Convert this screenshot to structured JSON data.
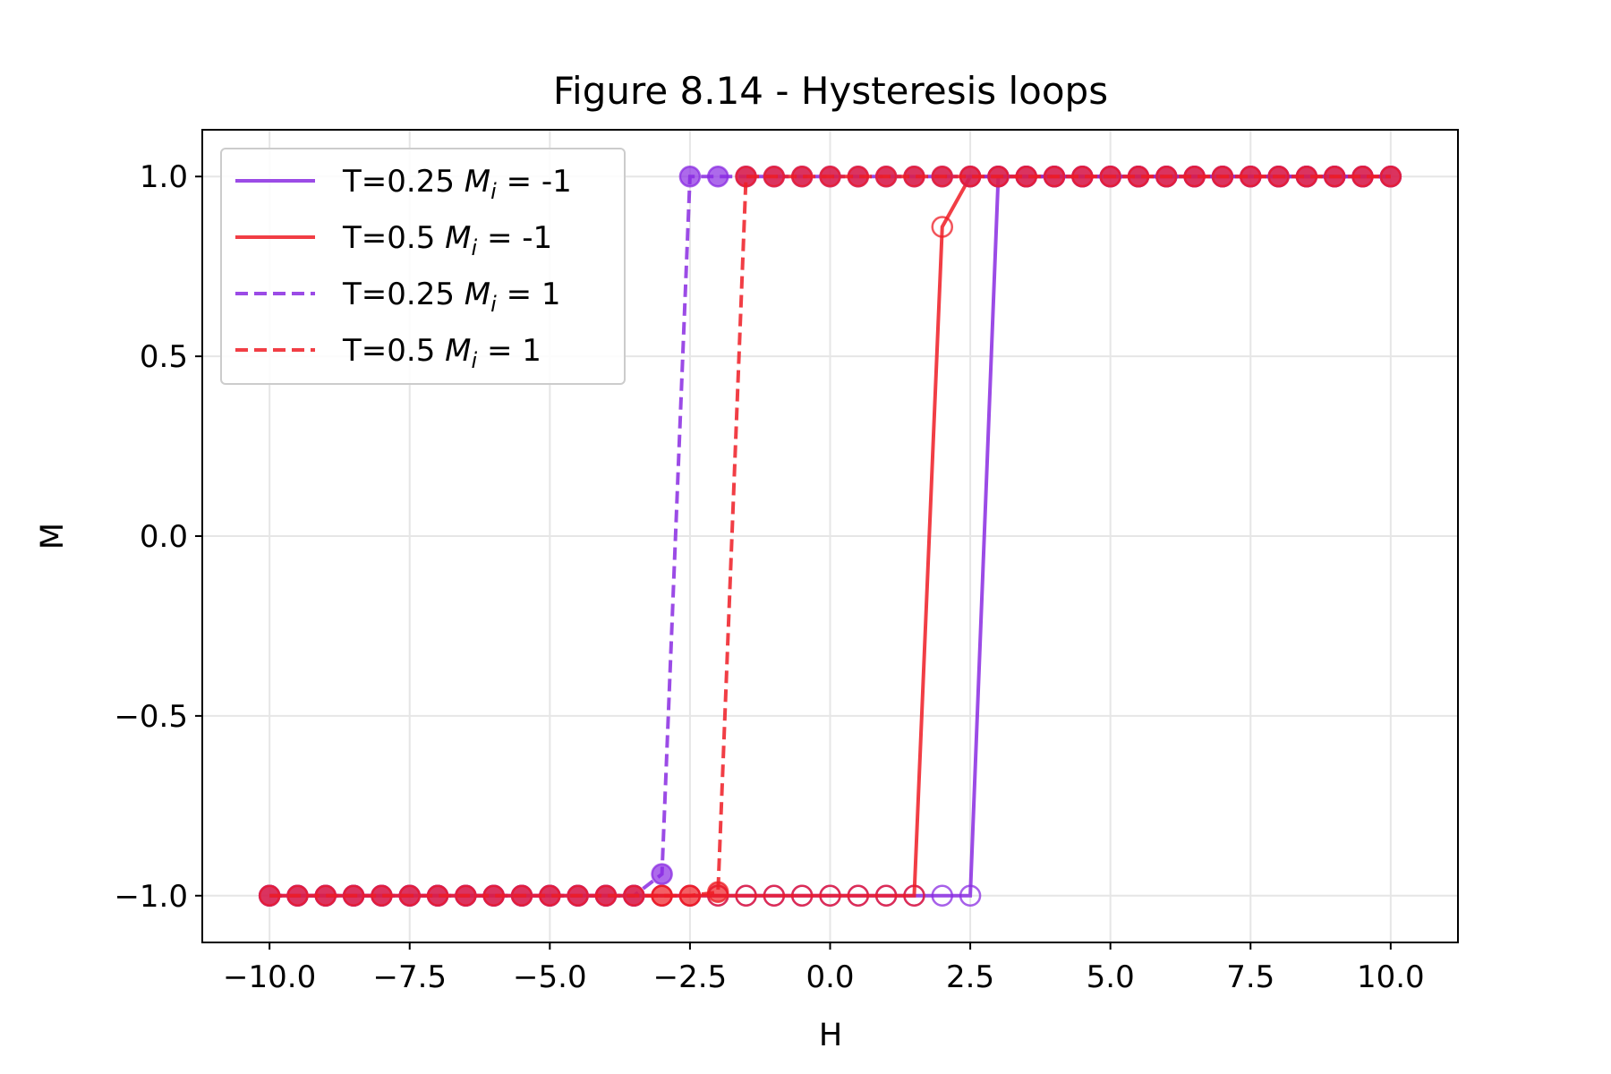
{
  "chart_data": {
    "type": "line",
    "title": "Figure 8.14 - Hysteresis loops",
    "xlabel": "H",
    "ylabel": "M",
    "xlim": [
      -11.2,
      11.2
    ],
    "ylim": [
      -1.13,
      1.13
    ],
    "xticks": [
      -10.0,
      -7.5,
      -5.0,
      -2.5,
      0.0,
      2.5,
      5.0,
      7.5,
      10.0
    ],
    "xtick_labels": [
      "−10.0",
      "−7.5",
      "−5.0",
      "−2.5",
      "0.0",
      "2.5",
      "5.0",
      "7.5",
      "10.0"
    ],
    "yticks": [
      -1.0,
      -0.5,
      0.0,
      0.5,
      1.0
    ],
    "ytick_labels": [
      "−1.0",
      "−0.5",
      "0.0",
      "0.5",
      "1.0"
    ],
    "grid": true,
    "legend_position": "top-left",
    "series": [
      {
        "name": "T=0.25 M_i = -1",
        "legend": {
          "prefix": "T=0.25 ",
          "symbol": "M",
          "sub": "i",
          "suffix": " = -1"
        },
        "color": "#8a2be2",
        "linestyle": "solid",
        "marker_fill": "none",
        "x": [
          -10.0,
          -9.5,
          -9.0,
          -8.5,
          -8.0,
          -7.5,
          -7.0,
          -6.5,
          -6.0,
          -5.5,
          -5.0,
          -4.5,
          -4.0,
          -3.5,
          -3.0,
          -2.5,
          -2.0,
          -1.5,
          -1.0,
          -0.5,
          0.0,
          0.5,
          1.0,
          1.5,
          2.0,
          2.5,
          3.0,
          3.5,
          4.0,
          4.5,
          5.0,
          5.5,
          6.0,
          6.5,
          7.0,
          7.5,
          8.0,
          8.5,
          9.0,
          9.5,
          10.0
        ],
        "y": [
          -1,
          -1,
          -1,
          -1,
          -1,
          -1,
          -1,
          -1,
          -1,
          -1,
          -1,
          -1,
          -1,
          -1,
          -1,
          -1,
          -1,
          -1,
          -1,
          -1,
          -1,
          -1,
          -1,
          -1,
          -1,
          -1,
          1,
          1,
          1,
          1,
          1,
          1,
          1,
          1,
          1,
          1,
          1,
          1,
          1,
          1,
          1
        ]
      },
      {
        "name": "T=0.5 M_i = -1",
        "legend": {
          "prefix": "T=0.5 ",
          "symbol": "M",
          "sub": "i",
          "suffix": " = -1"
        },
        "color": "#ee1c24",
        "linestyle": "solid",
        "marker_fill": "none",
        "x": [
          -10.0,
          -9.5,
          -9.0,
          -8.5,
          -8.0,
          -7.5,
          -7.0,
          -6.5,
          -6.0,
          -5.5,
          -5.0,
          -4.5,
          -4.0,
          -3.5,
          -3.0,
          -2.5,
          -2.0,
          -1.5,
          -1.0,
          -0.5,
          0.0,
          0.5,
          1.0,
          1.5,
          2.0,
          2.5,
          3.0,
          3.5,
          4.0,
          4.5,
          5.0,
          5.5,
          6.0,
          6.5,
          7.0,
          7.5,
          8.0,
          8.5,
          9.0,
          9.5,
          10.0
        ],
        "y": [
          -1,
          -1,
          -1,
          -1,
          -1,
          -1,
          -1,
          -1,
          -1,
          -1,
          -1,
          -1,
          -1,
          -1,
          -1,
          -1,
          -1,
          -1,
          -1,
          -1,
          -1,
          -1,
          -1,
          -1,
          0.86,
          1,
          1,
          1,
          1,
          1,
          1,
          1,
          1,
          1,
          1,
          1,
          1,
          1,
          1,
          1,
          1
        ]
      },
      {
        "name": "T=0.25 M_i = 1",
        "legend": {
          "prefix": "T=0.25 ",
          "symbol": "M",
          "sub": "i",
          "suffix": " = 1"
        },
        "color": "#8a2be2",
        "linestyle": "dashed",
        "marker_fill": "filled",
        "x": [
          -10.0,
          -9.5,
          -9.0,
          -8.5,
          -8.0,
          -7.5,
          -7.0,
          -6.5,
          -6.0,
          -5.5,
          -5.0,
          -4.5,
          -4.0,
          -3.5,
          -3.0,
          -2.5,
          -2.0,
          -1.5,
          -1.0,
          -0.5,
          0.0,
          0.5,
          1.0,
          1.5,
          2.0,
          2.5,
          3.0,
          3.5,
          4.0,
          4.5,
          5.0,
          5.5,
          6.0,
          6.5,
          7.0,
          7.5,
          8.0,
          8.5,
          9.0,
          9.5,
          10.0
        ],
        "y": [
          -1,
          -1,
          -1,
          -1,
          -1,
          -1,
          -1,
          -1,
          -1,
          -1,
          -1,
          -1,
          -1,
          -1,
          -0.94,
          1,
          1,
          1,
          1,
          1,
          1,
          1,
          1,
          1,
          1,
          1,
          1,
          1,
          1,
          1,
          1,
          1,
          1,
          1,
          1,
          1,
          1,
          1,
          1,
          1,
          1
        ]
      },
      {
        "name": "T=0.5 M_i = 1",
        "legend": {
          "prefix": "T=0.5 ",
          "symbol": "M",
          "sub": "i",
          "suffix": " = 1"
        },
        "color": "#ee1c24",
        "linestyle": "dashed",
        "marker_fill": "filled",
        "x": [
          -10.0,
          -9.5,
          -9.0,
          -8.5,
          -8.0,
          -7.5,
          -7.0,
          -6.5,
          -6.0,
          -5.5,
          -5.0,
          -4.5,
          -4.0,
          -3.5,
          -3.0,
          -2.5,
          -2.0,
          -1.5,
          -1.0,
          -0.5,
          0.0,
          0.5,
          1.0,
          1.5,
          2.0,
          2.5,
          3.0,
          3.5,
          4.0,
          4.5,
          5.0,
          5.5,
          6.0,
          6.5,
          7.0,
          7.5,
          8.0,
          8.5,
          9.0,
          9.5,
          10.0
        ],
        "y": [
          -1,
          -1,
          -1,
          -1,
          -1,
          -1,
          -1,
          -1,
          -1,
          -1,
          -1,
          -1,
          -1,
          -1,
          -1,
          -1,
          -0.99,
          1,
          1,
          1,
          1,
          1,
          1,
          1,
          1,
          1,
          1,
          1,
          1,
          1,
          1,
          1,
          1,
          1,
          1,
          1,
          1,
          1,
          1,
          1,
          1
        ]
      }
    ]
  }
}
